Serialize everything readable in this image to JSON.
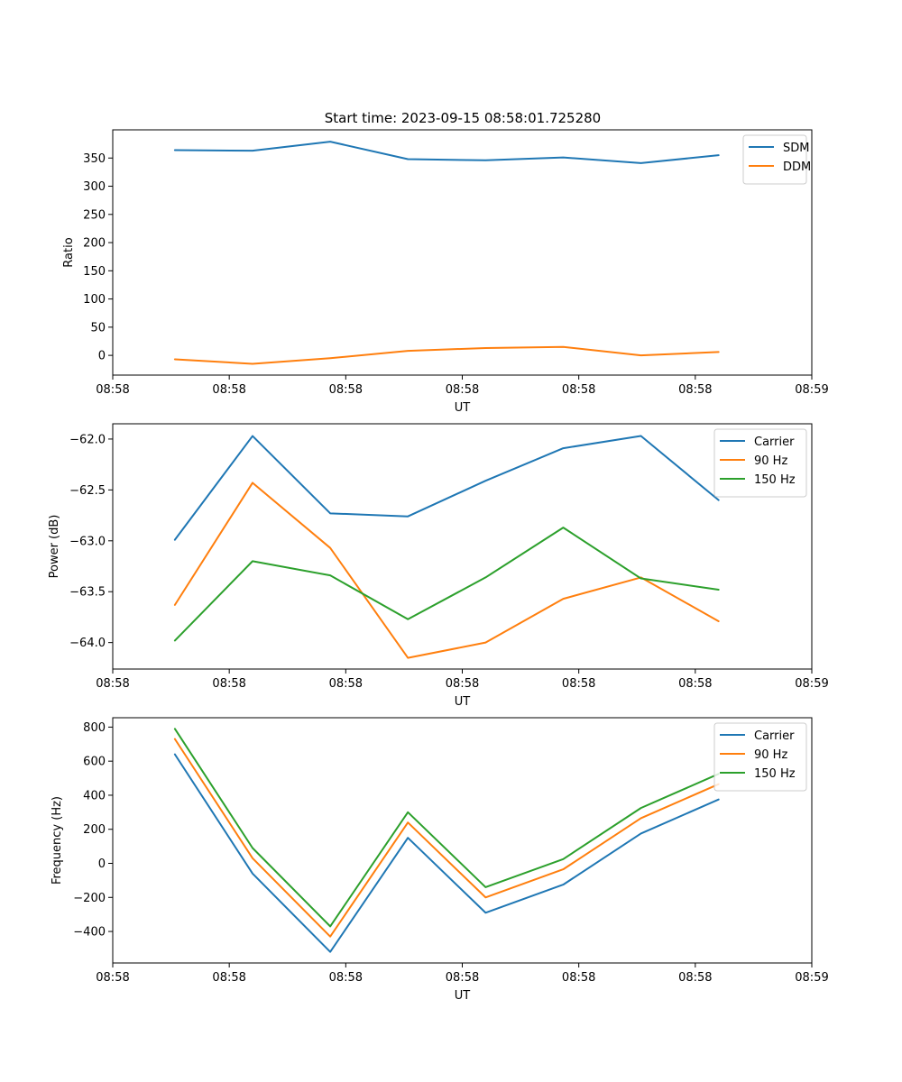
{
  "figure_title": "Start time: 2023-09-15 08:58:01.725280",
  "colors": {
    "blue": "#1f77b4",
    "orange": "#ff7f0e",
    "green": "#2ca02c"
  },
  "chart_data": [
    {
      "type": "line",
      "id": "ratio",
      "title": "Start time: 2023-09-15 08:58:01.725280",
      "xlabel": "UT",
      "ylabel": "Ratio",
      "x": [
        1,
        2,
        3,
        4,
        5,
        6,
        7,
        8
      ],
      "xlim": [
        0.2,
        9.2
      ],
      "xticks": [
        0.2,
        1.7,
        3.2,
        4.7,
        6.2,
        7.7,
        9.2
      ],
      "xtick_labels": [
        "08:58",
        "08:58",
        "08:58",
        "08:58",
        "08:58",
        "08:58",
        "08:59"
      ],
      "ylim": [
        -35,
        400
      ],
      "yticks": [
        0,
        50,
        100,
        150,
        200,
        250,
        300,
        350
      ],
      "ytick_labels": [
        "0",
        "50",
        "100",
        "150",
        "200",
        "250",
        "300",
        "350"
      ],
      "legend_position": "top-right",
      "series": [
        {
          "name": "SDM",
          "color": "#1f77b4",
          "values": [
            364,
            363,
            379,
            348,
            346,
            351,
            341,
            355
          ]
        },
        {
          "name": "DDM",
          "color": "#ff7f0e",
          "values": [
            -7,
            -15,
            -5,
            8,
            13,
            15,
            0,
            6
          ]
        }
      ]
    },
    {
      "type": "line",
      "id": "power",
      "title": "",
      "xlabel": "UT",
      "ylabel": "Power (dB)",
      "x": [
        1,
        2,
        3,
        4,
        5,
        6,
        7,
        8
      ],
      "xlim": [
        0.2,
        9.2
      ],
      "xticks": [
        0.2,
        1.7,
        3.2,
        4.7,
        6.2,
        7.7,
        9.2
      ],
      "xtick_labels": [
        "08:58",
        "08:58",
        "08:58",
        "08:58",
        "08:58",
        "08:58",
        "08:59"
      ],
      "ylim": [
        -64.26,
        -61.85
      ],
      "yticks": [
        -64.0,
        -63.5,
        -63.0,
        -62.5,
        -62.0
      ],
      "ytick_labels": [
        "−64.0",
        "−63.5",
        "−63.0",
        "−62.5",
        "−62.0"
      ],
      "legend_position": "top-right",
      "series": [
        {
          "name": "Carrier",
          "color": "#1f77b4",
          "values": [
            -62.99,
            -61.97,
            -62.73,
            -62.76,
            -62.41,
            -62.09,
            -61.97,
            -62.6
          ]
        },
        {
          "name": "90 Hz",
          "color": "#ff7f0e",
          "values": [
            -63.63,
            -62.43,
            -63.07,
            -64.15,
            -64.0,
            -63.57,
            -63.36,
            -63.79
          ]
        },
        {
          "name": "150 Hz",
          "color": "#2ca02c",
          "values": [
            -63.98,
            -63.2,
            -63.34,
            -63.77,
            -63.36,
            -62.87,
            -63.37,
            -63.48
          ]
        }
      ]
    },
    {
      "type": "line",
      "id": "frequency",
      "title": "",
      "xlabel": "UT",
      "ylabel": "Frequency (Hz)",
      "x": [
        1,
        2,
        3,
        4,
        5,
        6,
        7,
        8
      ],
      "xlim": [
        0.2,
        9.2
      ],
      "xticks": [
        0.2,
        1.7,
        3.2,
        4.7,
        6.2,
        7.7,
        9.2
      ],
      "xtick_labels": [
        "08:58",
        "08:58",
        "08:58",
        "08:58",
        "08:58",
        "08:58",
        "08:59"
      ],
      "ylim": [
        -585,
        855
      ],
      "yticks": [
        -400,
        -200,
        0,
        200,
        400,
        600,
        800
      ],
      "ytick_labels": [
        "−400",
        "−200",
        "0",
        "200",
        "400",
        "600",
        "800"
      ],
      "legend_position": "top-right",
      "series": [
        {
          "name": "Carrier",
          "color": "#1f77b4",
          "values": [
            640,
            -60,
            -520,
            150,
            -290,
            -125,
            175,
            375
          ]
        },
        {
          "name": "90 Hz",
          "color": "#ff7f0e",
          "values": [
            730,
            30,
            -430,
            240,
            -200,
            -35,
            265,
            465
          ]
        },
        {
          "name": "150 Hz",
          "color": "#2ca02c",
          "values": [
            790,
            90,
            -370,
            300,
            -140,
            25,
            325,
            525
          ]
        }
      ]
    }
  ]
}
